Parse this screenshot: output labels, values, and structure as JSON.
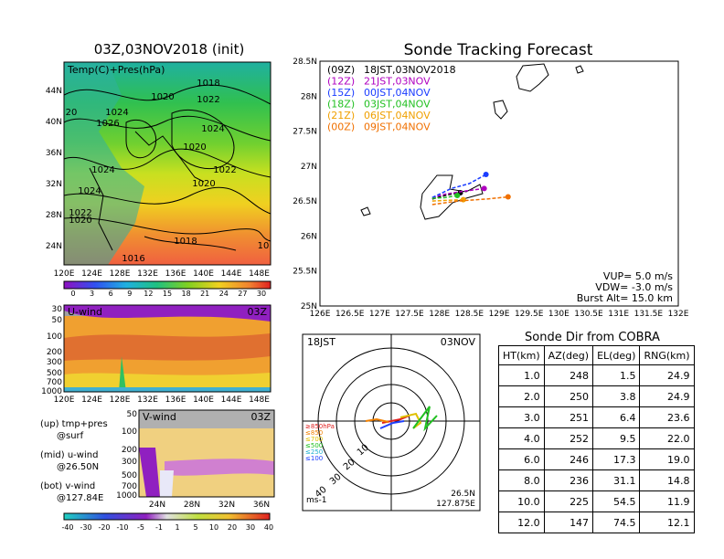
{
  "titles": {
    "left": "03Z,03NOV2018 (init)",
    "right": "Sonde Tracking Forecast",
    "dir_title": "Sonde Dir from COBRA"
  },
  "map_panel": {
    "label": "Temp(C)+Pres(hPa)",
    "lat_ticks": [
      "44N",
      "40N",
      "36N",
      "32N",
      "28N",
      "24N"
    ],
    "lon_ticks": [
      "120E",
      "124E",
      "128E",
      "132E",
      "136E",
      "140E",
      "144E",
      "148E"
    ],
    "isobar_labels": [
      "1018",
      "1020",
      "1022",
      "1024",
      "1026",
      "1024",
      "1020",
      "1024",
      "1022",
      "1020",
      "1024",
      "1022",
      "1020",
      "1018",
      "1016",
      "10",
      "20"
    ],
    "colorbar_ticks": [
      "0",
      "3",
      "6",
      "9",
      "12",
      "15",
      "18",
      "21",
      "24",
      "27",
      "30"
    ]
  },
  "u_panel": {
    "label": "U-wind",
    "time": "03Z",
    "p_ticks": [
      "30",
      "50",
      "100",
      "200",
      "300",
      "500",
      "700",
      "1000"
    ],
    "lon_ticks": [
      "120E",
      "124E",
      "128E",
      "132E",
      "136E",
      "140E",
      "144E",
      "148E"
    ]
  },
  "v_panel": {
    "label": "V-wind",
    "time": "03Z",
    "p_ticks": [
      "50",
      "100",
      "200",
      "300",
      "500",
      "700",
      "1000"
    ],
    "lat_ticks": [
      "24N",
      "28N",
      "32N",
      "36N"
    ],
    "colorbar_ticks": [
      "-40",
      "-30",
      "-20",
      "-10",
      "-5",
      "-1",
      "1",
      "5",
      "10",
      "20",
      "30",
      "40"
    ]
  },
  "legend_notes": [
    {
      "a": "(up) tmp+pres",
      "b": "@surf"
    },
    {
      "a": "(mid) u-wind",
      "b": "@26.50N"
    },
    {
      "a": "(bot) v-wind",
      "b": "@127.84E"
    }
  ],
  "tracking": {
    "launches": [
      {
        "code": "(09Z)",
        "time": "18JST,03NOV2018",
        "color": "#000000"
      },
      {
        "code": "(12Z)",
        "time": "21JST,03NOV",
        "color": "#b000c0"
      },
      {
        "code": "(15Z)",
        "time": "00JST,04NOV",
        "color": "#1a3cff"
      },
      {
        "code": "(18Z)",
        "time": "03JST,04NOV",
        "color": "#22c022"
      },
      {
        "code": "(21Z)",
        "time": "06JST,04NOV",
        "color": "#f0a000"
      },
      {
        "code": "(00Z)",
        "time": "09JST,04NOV",
        "color": "#f07000"
      }
    ],
    "params": [
      "VUP=  5.0 m/s",
      "VDW= -3.0 m/s",
      "Burst Alt= 15.0 km"
    ],
    "lat_ticks": [
      "28.5N",
      "28N",
      "27.5N",
      "27N",
      "26.5N",
      "26N",
      "25.5N",
      "25N"
    ],
    "lon_ticks": [
      "126E",
      "126.5E",
      "127E",
      "127.5E",
      "128E",
      "128.5E",
      "129E",
      "129.5E",
      "130E",
      "130.5E",
      "131E",
      "131.5E",
      "132E"
    ]
  },
  "hodograph": {
    "left_label": "18JST",
    "right_label": "03NOV",
    "unit": "ms-1",
    "lat": "26.5N",
    "lon": "127.875E",
    "ring_labels": [
      "10",
      "20",
      "30",
      "40"
    ],
    "levels": [
      {
        "label": "≥850hPa",
        "color": "#e02020"
      },
      {
        "label": "≤850",
        "color": "#f08000"
      },
      {
        "label": "≤700",
        "color": "#e0c000"
      },
      {
        "label": "≤500",
        "color": "#20c020"
      },
      {
        "label": "≤250",
        "color": "#20b0d0"
      },
      {
        "label": "≤100",
        "color": "#2040ff"
      }
    ]
  },
  "dir_table": {
    "headers": [
      "HT(km)",
      "AZ(deg)",
      "EL(deg)",
      "RNG(km)"
    ],
    "rows": [
      [
        "1.0",
        "248",
        "1.5",
        "24.9"
      ],
      [
        "2.0",
        "250",
        "3.8",
        "24.9"
      ],
      [
        "3.0",
        "251",
        "6.4",
        "23.6"
      ],
      [
        "4.0",
        "252",
        "9.5",
        "22.0"
      ],
      [
        "6.0",
        "246",
        "17.3",
        "19.0"
      ],
      [
        "8.0",
        "236",
        "31.1",
        "14.8"
      ],
      [
        "10.0",
        "225",
        "54.5",
        "11.9"
      ],
      [
        "12.0",
        "147",
        "74.5",
        "12.1"
      ]
    ]
  },
  "chart_data": [
    {
      "type": "line",
      "title": "Sonde Tracking Forecast",
      "xlabel": "",
      "ylabel": "",
      "xlim": [
        126,
        132
      ],
      "ylim": [
        25,
        28.5
      ],
      "series": [
        {
          "name": "(09Z) 18JST,03NOV2018",
          "x": [
            127.88,
            128.05,
            128.2,
            128.35
          ],
          "y": [
            26.53,
            26.57,
            26.6,
            26.62
          ]
        },
        {
          "name": "(12Z) 21JST,03NOV",
          "x": [
            127.88,
            128.1,
            128.4,
            128.75
          ],
          "y": [
            26.55,
            26.6,
            26.64,
            26.68
          ]
        },
        {
          "name": "(15Z) 00JST,04NOV",
          "x": [
            127.88,
            128.2,
            128.5,
            128.78
          ],
          "y": [
            26.55,
            26.68,
            26.75,
            26.88
          ]
        },
        {
          "name": "(18Z) 03JST,04NOV",
          "x": [
            127.88,
            128.1,
            128.3
          ],
          "y": [
            26.54,
            26.55,
            26.58
          ]
        },
        {
          "name": "(21Z) 06JST,04NOV",
          "x": [
            127.88,
            128.1,
            128.4
          ],
          "y": [
            26.5,
            26.51,
            26.52
          ]
        },
        {
          "name": "(00Z) 09JST,04NOV",
          "x": [
            127.88,
            128.3,
            128.8,
            129.15
          ],
          "y": [
            26.45,
            26.5,
            26.53,
            26.56
          ]
        }
      ]
    },
    {
      "type": "table",
      "title": "Sonde Dir from COBRA",
      "columns": [
        "HT(km)",
        "AZ(deg)",
        "EL(deg)",
        "RNG(km)"
      ],
      "rows": [
        [
          1.0,
          248,
          1.5,
          24.9
        ],
        [
          2.0,
          250,
          3.8,
          24.9
        ],
        [
          3.0,
          251,
          6.4,
          23.6
        ],
        [
          4.0,
          252,
          9.5,
          22.0
        ],
        [
          6.0,
          246,
          17.3,
          19.0
        ],
        [
          8.0,
          236,
          31.1,
          14.8
        ],
        [
          10.0,
          225,
          54.5,
          11.9
        ],
        [
          12.0,
          147,
          74.5,
          12.1
        ]
      ]
    }
  ]
}
